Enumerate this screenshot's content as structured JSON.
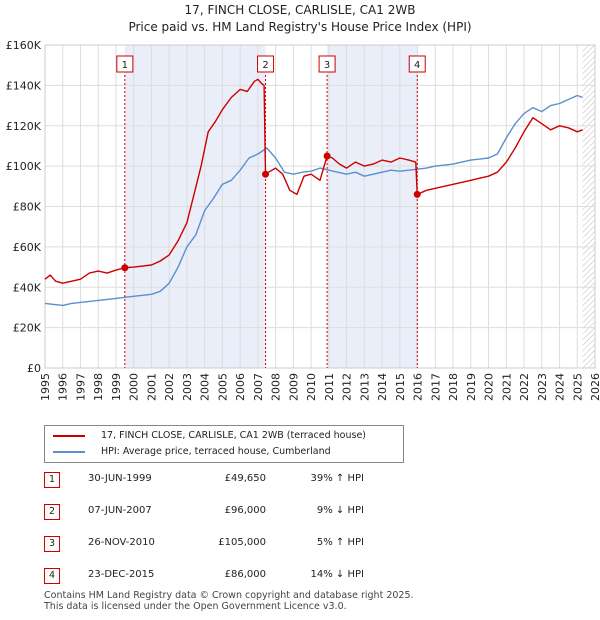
{
  "title": "17, FINCH CLOSE, CARLISLE, CA1 2WB",
  "subtitle": "Price paid vs. HM Land Registry's House Price Index (HPI)",
  "colors": {
    "property": "#cc0000",
    "hpi": "#5b8fd0",
    "shade": "#e9eef8",
    "grid": "#dddddd"
  },
  "chart_data": {
    "type": "line",
    "title": "17, FINCH CLOSE, CARLISLE, CA1 2WB",
    "subtitle": "Price paid vs. HM Land Registry's House Price Index (HPI)",
    "xlim": [
      1995,
      2026
    ],
    "ylim": [
      0,
      160000
    ],
    "y_ticks": [
      0,
      20000,
      40000,
      60000,
      80000,
      100000,
      120000,
      140000,
      160000
    ],
    "y_tick_labels": [
      "£0",
      "£20K",
      "£40K",
      "£60K",
      "£80K",
      "£100K",
      "£120K",
      "£140K",
      "£160K"
    ],
    "x_ticks": [
      1995,
      1996,
      1997,
      1998,
      1999,
      2000,
      2001,
      2002,
      2003,
      2004,
      2005,
      2006,
      2007,
      2008,
      2009,
      2010,
      2011,
      2012,
      2013,
      2014,
      2015,
      2016,
      2017,
      2018,
      2019,
      2020,
      2021,
      2022,
      2023,
      2024,
      2025,
      2026
    ],
    "x_tick_labels": [
      "1995",
      "1996",
      "1997",
      "1998",
      "1999",
      "2000",
      "2001",
      "2002",
      "2003",
      "2004",
      "2005",
      "2006",
      "2007",
      "2008",
      "2009",
      "2010",
      "2011",
      "2012",
      "2013",
      "2014",
      "2015",
      "2016",
      "2017",
      "2018",
      "2019",
      "2020",
      "2021",
      "2022",
      "2023",
      "2024",
      "2025",
      "2026"
    ],
    "grid": true,
    "shaded_periods": [
      [
        1999.5,
        2007.43
      ],
      [
        2010.9,
        2015.98
      ]
    ],
    "future_hatch_from": 2025.3,
    "series": [
      {
        "name": "17, FINCH CLOSE, CARLISLE, CA1 2WB (terraced house)",
        "color": "#cc0000",
        "x": [
          1995.0,
          1995.3,
          1995.6,
          1996.0,
          1996.5,
          1997.0,
          1997.5,
          1998.0,
          1998.5,
          1999.0,
          1999.5,
          2000.0,
          2000.5,
          2001.0,
          2001.5,
          2002.0,
          2002.5,
          2003.0,
          2003.4,
          2003.8,
          2004.2,
          2004.6,
          2005.0,
          2005.5,
          2006.0,
          2006.4,
          2006.8,
          2007.0,
          2007.2,
          2007.35,
          2007.43,
          2007.6,
          2008.0,
          2008.4,
          2008.8,
          2009.2,
          2009.6,
          2010.0,
          2010.5,
          2010.9,
          2011.2,
          2011.6,
          2012.0,
          2012.5,
          2013.0,
          2013.5,
          2014.0,
          2014.5,
          2015.0,
          2015.5,
          2015.9,
          2015.98,
          2016.5,
          2017.0,
          2017.5,
          2018.0,
          2018.5,
          2019.0,
          2019.5,
          2020.0,
          2020.5,
          2021.0,
          2021.5,
          2022.0,
          2022.5,
          2023.0,
          2023.5,
          2024.0,
          2024.5,
          2025.0,
          2025.3
        ],
        "values": [
          44000,
          46000,
          43000,
          42000,
          43000,
          44000,
          47000,
          48000,
          47000,
          48500,
          49650,
          50000,
          50500,
          51000,
          53000,
          56000,
          63000,
          72000,
          86000,
          100000,
          117000,
          122000,
          128000,
          134000,
          138000,
          137000,
          142000,
          143000,
          141000,
          140000,
          96000,
          97000,
          99000,
          96000,
          88000,
          86000,
          95000,
          96000,
          93000,
          105000,
          104000,
          101000,
          99000,
          102000,
          100000,
          101000,
          103000,
          102000,
          104000,
          103000,
          102000,
          86000,
          88000,
          89000,
          90000,
          91000,
          92000,
          93000,
          94000,
          95000,
          97000,
          102000,
          109000,
          117000,
          124000,
          121000,
          118000,
          120000,
          119000,
          117000,
          118000
        ]
      },
      {
        "name": "HPI: Average price, terraced house, Cumberland",
        "color": "#5b8fd0",
        "x": [
          1995.0,
          1995.5,
          1996.0,
          1996.5,
          1997.0,
          1997.5,
          1998.0,
          1998.5,
          1999.0,
          1999.5,
          2000.0,
          2000.5,
          2001.0,
          2001.5,
          2002.0,
          2002.5,
          2003.0,
          2003.5,
          2004.0,
          2004.5,
          2005.0,
          2005.5,
          2006.0,
          2006.5,
          2007.0,
          2007.5,
          2008.0,
          2008.5,
          2009.0,
          2009.5,
          2010.0,
          2010.5,
          2011.0,
          2011.5,
          2012.0,
          2012.5,
          2013.0,
          2013.5,
          2014.0,
          2014.5,
          2015.0,
          2015.5,
          2016.0,
          2016.5,
          2017.0,
          2017.5,
          2018.0,
          2018.5,
          2019.0,
          2019.5,
          2020.0,
          2020.5,
          2021.0,
          2021.5,
          2022.0,
          2022.5,
          2023.0,
          2023.5,
          2024.0,
          2024.5,
          2025.0,
          2025.3
        ],
        "values": [
          32000,
          31500,
          31000,
          32000,
          32500,
          33000,
          33500,
          34000,
          34500,
          35000,
          35500,
          36000,
          36500,
          38000,
          42000,
          50000,
          60000,
          66000,
          78000,
          84000,
          91000,
          93000,
          98000,
          104000,
          106000,
          109000,
          104000,
          97000,
          96000,
          97000,
          97500,
          99000,
          98000,
          97000,
          96000,
          97000,
          95000,
          96000,
          97000,
          98000,
          97500,
          98000,
          98500,
          99000,
          100000,
          100500,
          101000,
          102000,
          103000,
          103500,
          104000,
          106000,
          114000,
          121000,
          126000,
          129000,
          127000,
          130000,
          131000,
          133000,
          135000,
          134000
        ]
      }
    ],
    "transactions": [
      {
        "num": "1",
        "x": 1999.5,
        "price": 49650
      },
      {
        "num": "2",
        "x": 2007.43,
        "price": 96000
      },
      {
        "num": "3",
        "x": 2010.9,
        "price": 105000
      },
      {
        "num": "4",
        "x": 2015.98,
        "price": 86000
      }
    ]
  },
  "legend": {
    "property": "17, FINCH CLOSE, CARLISLE, CA1 2WB (terraced house)",
    "hpi": "HPI: Average price, terraced house, Cumberland"
  },
  "transactions_table": [
    {
      "num": "1",
      "date": "30-JUN-1999",
      "price": "£49,650",
      "hpi": "39% ↑ HPI"
    },
    {
      "num": "2",
      "date": "07-JUN-2007",
      "price": "£96,000",
      "hpi": "9% ↓ HPI"
    },
    {
      "num": "3",
      "date": "26-NOV-2010",
      "price": "£105,000",
      "hpi": "5% ↑ HPI"
    },
    {
      "num": "4",
      "date": "23-DEC-2015",
      "price": "£86,000",
      "hpi": "14% ↓ HPI"
    }
  ],
  "footer": {
    "line1": "Contains HM Land Registry data © Crown copyright and database right 2025.",
    "line2": "This data is licensed under the Open Government Licence v3.0."
  }
}
